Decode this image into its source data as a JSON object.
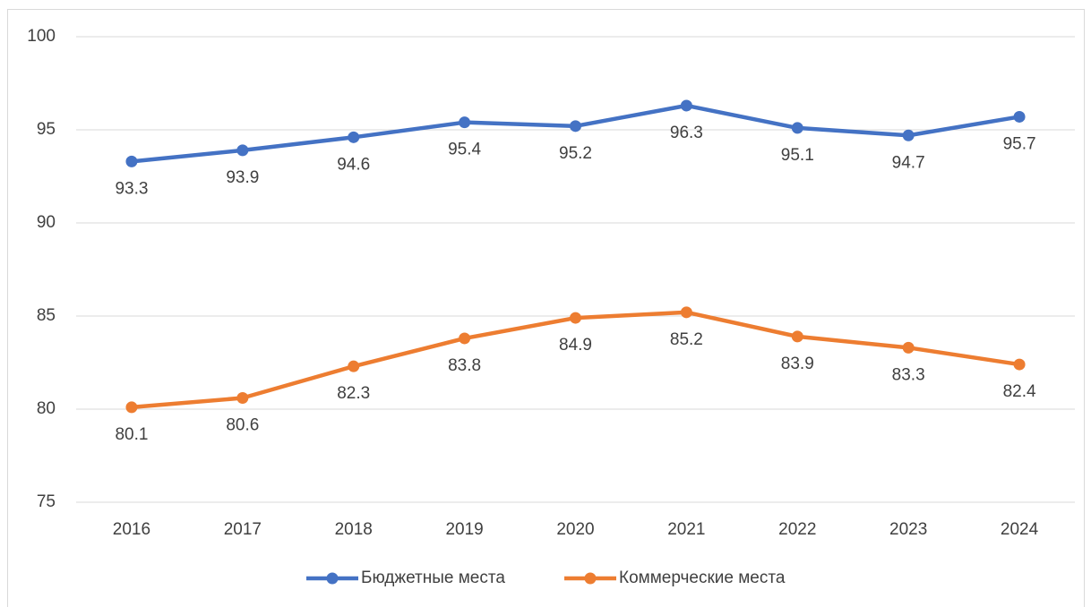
{
  "chart_data": {
    "type": "line",
    "categories": [
      "2016",
      "2017",
      "2018",
      "2019",
      "2020",
      "2021",
      "2022",
      "2023",
      "2024"
    ],
    "series": [
      {
        "name": "Бюджетные места",
        "color": "#4472c4",
        "values": [
          93.3,
          93.9,
          94.6,
          95.4,
          95.2,
          96.3,
          95.1,
          94.7,
          95.7
        ]
      },
      {
        "name": "Коммерческие места",
        "color": "#ed7d31",
        "values": [
          80.1,
          80.6,
          82.3,
          83.8,
          84.9,
          85.2,
          83.9,
          83.3,
          82.4
        ]
      }
    ],
    "ylim": [
      75,
      100
    ],
    "yticks": [
      75,
      80,
      85,
      90,
      95,
      100
    ],
    "grid": true,
    "legend": "bottom"
  }
}
